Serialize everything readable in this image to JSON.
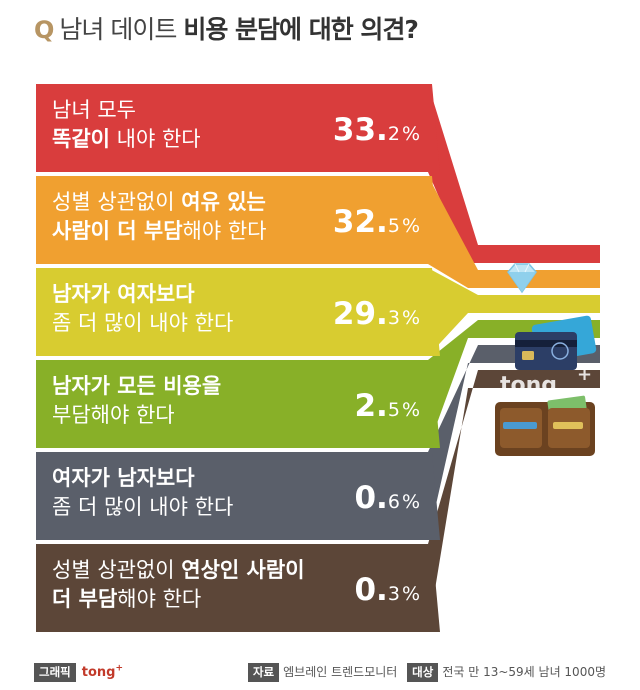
{
  "title": {
    "q": "Q",
    "part1": "남녀 데이트",
    "part2": "비용 분담에 대한 의견?"
  },
  "chart_data": {
    "type": "bar",
    "unit": "%",
    "categories": [
      [
        "남녀 모두",
        "똑같이 내야 한다"
      ],
      [
        "성별 상관없이 여유 있는",
        "사람이 더 부담해야 한다"
      ],
      [
        "남자가 여자보다",
        "좀 더 많이 내야 한다"
      ],
      [
        "남자가 모든 비용을",
        "부담해야 한다"
      ],
      [
        "여자가 남자보다",
        "좀 더 많이 내야 한다"
      ],
      [
        "성별 상관없이 연상인 사람이",
        "더 부담해야 한다"
      ]
    ],
    "values": [
      33.2,
      32.5,
      29.3,
      2.5,
      0.6,
      0.3
    ],
    "value_labels": [
      {
        "int": "33.",
        "dec": "2"
      },
      {
        "int": "32.",
        "dec": "5"
      },
      {
        "int": "29.",
        "dec": "3"
      },
      {
        "int": "2.",
        "dec": "5"
      },
      {
        "int": "0.",
        "dec": "6"
      },
      {
        "int": "0.",
        "dec": "3"
      }
    ],
    "colors": [
      "#d93d3d",
      "#f0a030",
      "#d8cc30",
      "#88b028",
      "#5a5f6a",
      "#5c4638"
    ]
  },
  "bold_parts": [
    [
      [],
      [
        "똑같이"
      ]
    ],
    [
      [
        "여유 있는"
      ],
      [
        "사람이 더 부담"
      ]
    ],
    [
      [
        "남자가 여자보다"
      ],
      []
    ],
    [
      [
        "남자가 모든 비용을"
      ],
      []
    ],
    [
      [
        "여자가 남자보다"
      ],
      []
    ],
    [
      [
        "연상인 사람이"
      ],
      [
        "더 부담"
      ]
    ]
  ],
  "watermark": {
    "text": "tong",
    "plus": "+"
  },
  "footer": {
    "graphic_label": "그래픽",
    "brand": "tong",
    "brand_plus": "+",
    "source_label": "자료",
    "source_value": "엠브레인 트렌드모니터",
    "target_label": "대상",
    "target_value": "전국 만 13~59세 남녀 1000명"
  }
}
